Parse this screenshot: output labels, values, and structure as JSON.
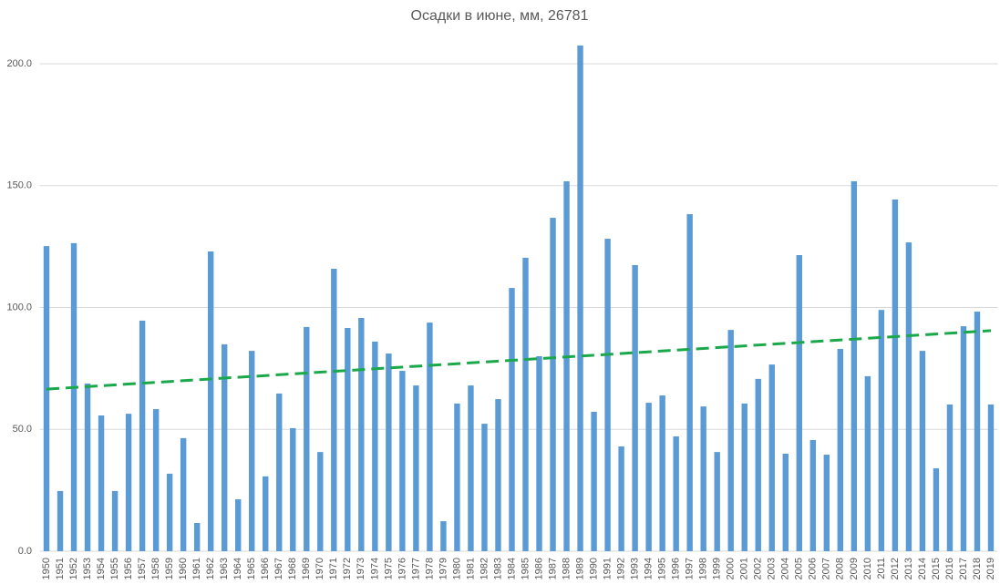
{
  "chart_data": {
    "type": "bar",
    "title": "Осадки в июне, мм, 26781",
    "categories": [
      "1950",
      "1951",
      "1952",
      "1953",
      "1954",
      "1955",
      "1956",
      "1957",
      "1958",
      "1959",
      "1960",
      "1961",
      "1962",
      "1963",
      "1964",
      "1965",
      "1966",
      "1967",
      "1968",
      "1969",
      "1970",
      "1971",
      "1972",
      "1973",
      "1974",
      "1975",
      "1976",
      "1977",
      "1978",
      "1979",
      "1980",
      "1981",
      "1982",
      "1983",
      "1984",
      "1985",
      "1986",
      "1987",
      "1988",
      "1989",
      "1990",
      "1991",
      "1992",
      "1993",
      "1994",
      "1995",
      "1996",
      "1997",
      "1998",
      "1999",
      "2000",
      "2001",
      "2002",
      "2003",
      "2004",
      "2005",
      "2006",
      "2007",
      "2008",
      "2009",
      "2010",
      "2011",
      "2012",
      "2013",
      "2014",
      "2015",
      "2016",
      "2017",
      "2018",
      "2019"
    ],
    "values": [
      125.2,
      24.7,
      126.4,
      68.8,
      55.7,
      24.7,
      56.4,
      94.6,
      58.3,
      31.8,
      46.4,
      11.6,
      123,
      84.9,
      21.3,
      82.2,
      30.7,
      64.7,
      50.5,
      92,
      40.7,
      115.9,
      91.6,
      95.7,
      86,
      81.1,
      74,
      68,
      93.8,
      12.3,
      60.6,
      68,
      52.3,
      62.4,
      108,
      120.4,
      80,
      136.8,
      151.8,
      207.5,
      57.2,
      128.2,
      43,
      117.4,
      60.9,
      63.9,
      47.1,
      138.3,
      59.4,
      40.7,
      90.8,
      60.6,
      70.7,
      76.6,
      40,
      121.5,
      45.6,
      39.6,
      83,
      151.8,
      71.8,
      99,
      144.3,
      126.7,
      82.2,
      34,
      60.2,
      92.3,
      98.3,
      60.2
    ],
    "color": "#5b9bd5",
    "ylim": [
      0,
      200
    ],
    "yticks": [
      {
        "value": 0,
        "label": "0.0"
      },
      {
        "value": 50,
        "label": "50.0"
      },
      {
        "value": 100,
        "label": "100.0"
      },
      {
        "value": 150,
        "label": "150.0"
      },
      {
        "value": 200,
        "label": "200.0"
      }
    ],
    "grid": true,
    "trendline": {
      "values": [
        66.5,
        90.5
      ],
      "color": "#1ba84a",
      "dashed": true
    }
  }
}
